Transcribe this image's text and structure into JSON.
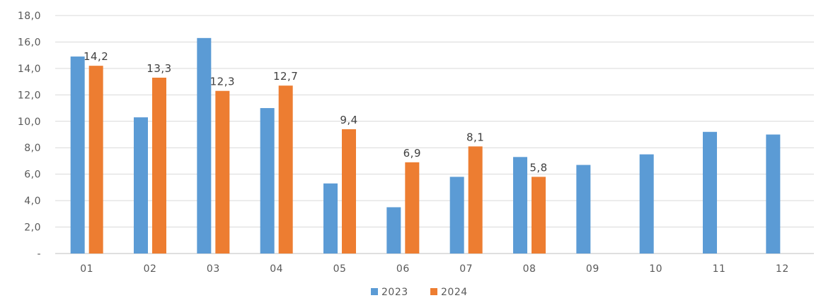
{
  "chart_data": {
    "type": "bar",
    "categories": [
      "01",
      "02",
      "03",
      "04",
      "05",
      "06",
      "07",
      "08",
      "09",
      "10",
      "11",
      "12"
    ],
    "series": [
      {
        "name": "2023",
        "color": "#5B9BD5",
        "values": [
          14.9,
          10.3,
          16.3,
          11.0,
          5.3,
          3.5,
          5.8,
          7.3,
          6.7,
          7.5,
          9.2,
          9.0
        ]
      },
      {
        "name": "2024",
        "color": "#ED7D31",
        "values": [
          14.2,
          13.3,
          12.3,
          12.7,
          9.4,
          6.9,
          8.1,
          5.8,
          null,
          null,
          null,
          null
        ],
        "data_labels": [
          "14,2",
          "13,3",
          "12,3",
          "12,7",
          "9,4",
          "6,9",
          "8,1",
          "5,8",
          null,
          null,
          null,
          null
        ]
      }
    ],
    "y_ticks": [
      "-",
      "2,0",
      "4,0",
      "6,0",
      "8,0",
      "10,0",
      "12,0",
      "14,0",
      "16,0",
      "18,0"
    ],
    "ylim": [
      0,
      18
    ],
    "grid": true,
    "legend_position": "bottom"
  }
}
